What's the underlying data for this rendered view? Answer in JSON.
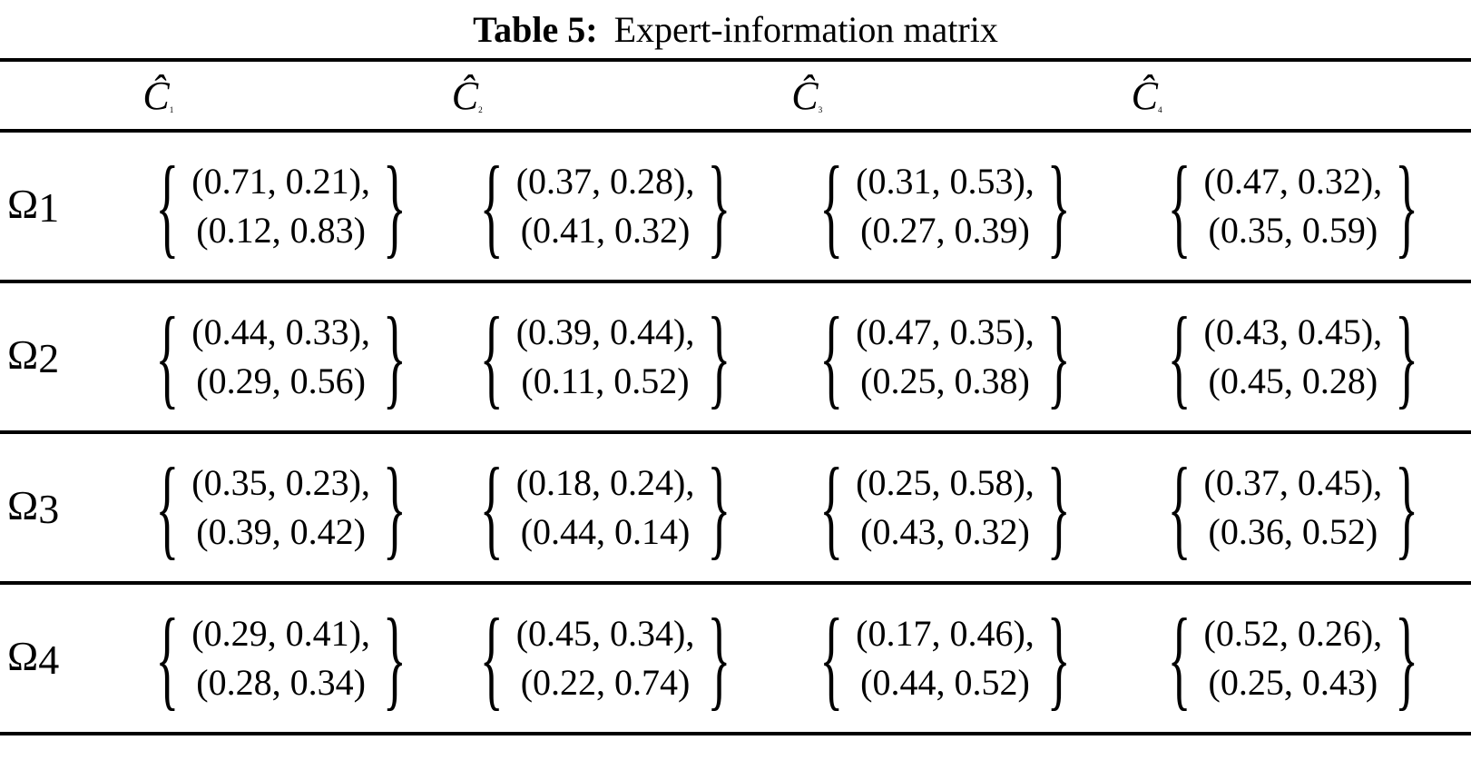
{
  "title": {
    "prefix": "Table 5:",
    "text": "Expert-information matrix"
  },
  "colors": {
    "background": "#ffffff",
    "text": "#000000",
    "rule": "#000000"
  },
  "table": {
    "brace_left": "{",
    "brace_right": "}",
    "col_headers": [
      {
        "symbol": "Ĉ",
        "sub": "1"
      },
      {
        "symbol": "Ĉ",
        "sub": "2"
      },
      {
        "symbol": "Ĉ",
        "sub": "3"
      },
      {
        "symbol": "Ĉ",
        "sub": "4"
      }
    ],
    "rows": [
      {
        "symbol": "Ω",
        "sub": "1",
        "cells": [
          {
            "line1": "(0.71, 0.21),",
            "line2": "(0.12, 0.83)"
          },
          {
            "line1": "(0.37, 0.28),",
            "line2": "(0.41, 0.32)"
          },
          {
            "line1": "(0.31, 0.53),",
            "line2": "(0.27, 0.39)"
          },
          {
            "line1": "(0.47, 0.32),",
            "line2": "(0.35, 0.59)"
          }
        ]
      },
      {
        "symbol": "Ω",
        "sub": "2",
        "cells": [
          {
            "line1": "(0.44, 0.33),",
            "line2": "(0.29, 0.56)"
          },
          {
            "line1": "(0.39, 0.44),",
            "line2": "(0.11, 0.52)"
          },
          {
            "line1": "(0.47, 0.35),",
            "line2": "(0.25, 0.38)"
          },
          {
            "line1": "(0.43, 0.45),",
            "line2": "(0.45, 0.28)"
          }
        ]
      },
      {
        "symbol": "Ω",
        "sub": "3",
        "cells": [
          {
            "line1": "(0.35, 0.23),",
            "line2": "(0.39, 0.42)"
          },
          {
            "line1": "(0.18, 0.24),",
            "line2": "(0.44, 0.14)"
          },
          {
            "line1": "(0.25, 0.58),",
            "line2": "(0.43, 0.32)"
          },
          {
            "line1": "(0.37, 0.45),",
            "line2": "(0.36, 0.52)"
          }
        ]
      },
      {
        "symbol": "Ω",
        "sub": "4",
        "cells": [
          {
            "line1": "(0.29, 0.41),",
            "line2": "(0.28, 0.34)"
          },
          {
            "line1": "(0.45, 0.34),",
            "line2": "(0.22, 0.74)"
          },
          {
            "line1": "(0.17, 0.46),",
            "line2": "(0.44, 0.52)"
          },
          {
            "line1": "(0.52, 0.26),",
            "line2": "(0.25, 0.43)"
          }
        ]
      }
    ]
  }
}
